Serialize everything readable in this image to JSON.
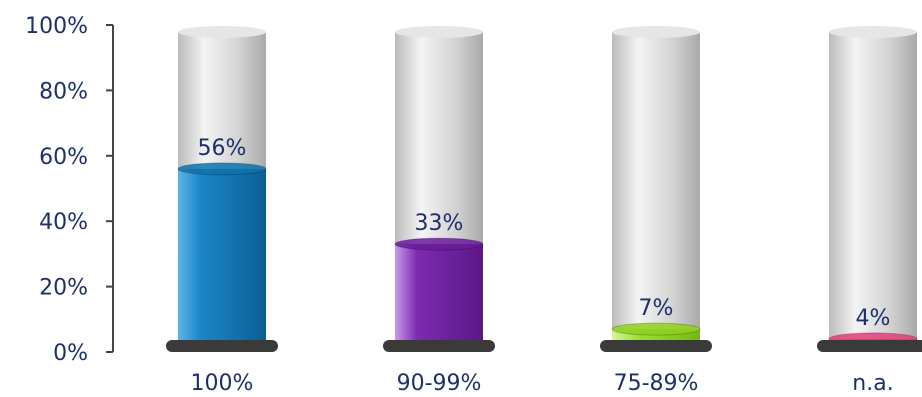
{
  "chart_data": {
    "type": "bar",
    "style": "3d-cylinder",
    "categories": [
      "100%",
      "90-99%",
      "75-89%",
      "n.a."
    ],
    "values": [
      56,
      33,
      7,
      4
    ],
    "data_labels": [
      "56%",
      "33%",
      "7%",
      "4%"
    ],
    "colors": [
      "#0e72ad",
      "#6a1b9a",
      "#8fd11f",
      "#e0407a"
    ],
    "ylim": [
      0,
      100
    ],
    "yticks": [
      0,
      20,
      40,
      60,
      80,
      100
    ],
    "ytick_labels": [
      "0%",
      "20%",
      "40%",
      "60%",
      "80%",
      "100%"
    ],
    "grid": false,
    "legend": "none",
    "title": "",
    "xlabel": "",
    "ylabel": ""
  }
}
